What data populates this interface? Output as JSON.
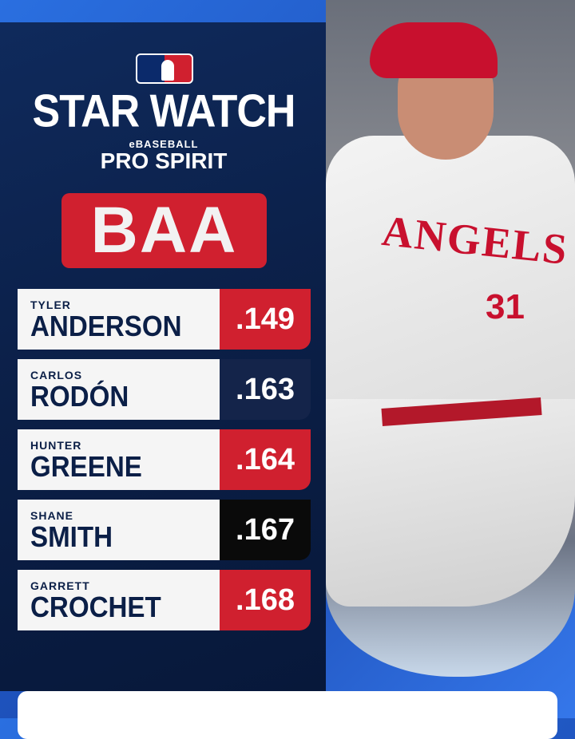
{
  "header": {
    "logo": "MLB",
    "title": "STAR WATCH",
    "sponsor_small": "eBASEBALL",
    "sponsor": "PRO SPIRIT"
  },
  "stat_label": "BAA",
  "colors": {
    "red": "#d0202f",
    "navy": "#14244a",
    "black": "#0a0a0a"
  },
  "players": [
    {
      "first": "TYLER",
      "last": "ANDERSON",
      "value": ".149",
      "color": "#d0202f"
    },
    {
      "first": "CARLOS",
      "last": "RODÓN",
      "value": ".163",
      "color": "#14244a"
    },
    {
      "first": "HUNTER",
      "last": "GREENE",
      "value": ".164",
      "color": "#d0202f"
    },
    {
      "first": "SHANE",
      "last": "SMITH",
      "value": ".167",
      "color": "#0a0a0a"
    },
    {
      "first": "GARRETT",
      "last": "CROCHET",
      "value": ".168",
      "color": "#d0202f"
    }
  ],
  "photo": {
    "team": "ANGELS",
    "number": "31"
  }
}
